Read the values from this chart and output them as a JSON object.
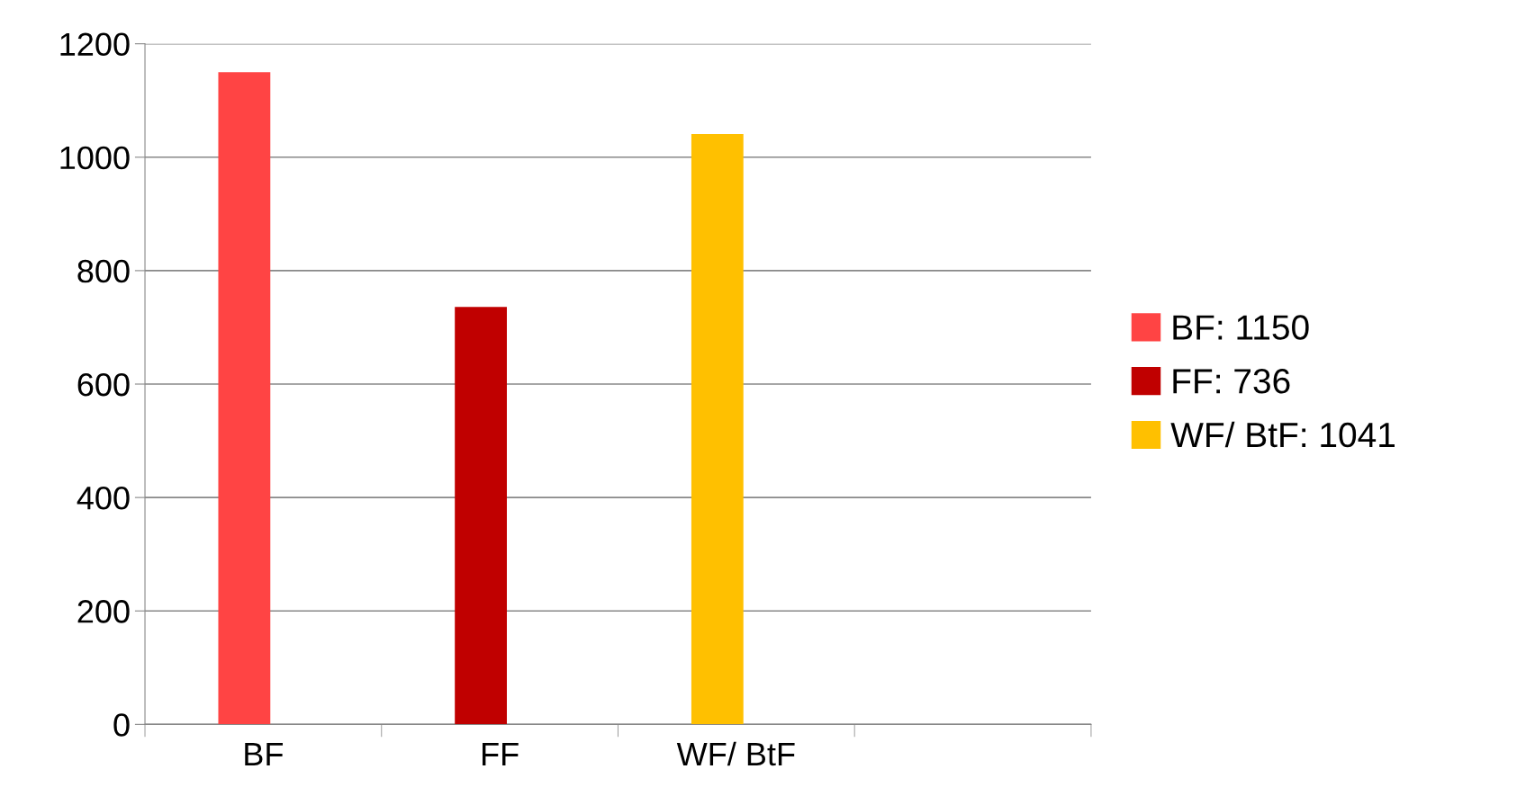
{
  "chart_data": {
    "type": "bar",
    "categories": [
      "BF",
      "FF",
      "WF/ BtF",
      null
    ],
    "series": [
      {
        "name": "BF: 1150",
        "color": "#ff4444",
        "values": [
          1150,
          null,
          null,
          null
        ]
      },
      {
        "name": "FF: 736",
        "color": "#c00000",
        "values": [
          null,
          736,
          null,
          null
        ]
      },
      {
        "name": "WF/ BtF: 1041",
        "color": "#ffc000",
        "values": [
          null,
          null,
          1041,
          null
        ]
      }
    ],
    "ylim": [
      0,
      1200
    ],
    "yticks": [
      0,
      200,
      400,
      600,
      800,
      1000,
      1200
    ],
    "grid": "y",
    "legend": "right"
  }
}
